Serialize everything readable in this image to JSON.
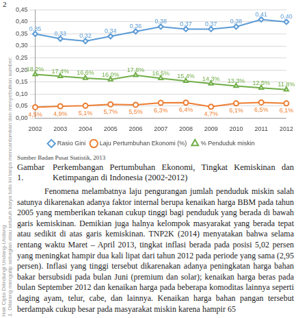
{
  "page_number": "2",
  "watermark": [
    "Hak Cipta Dilindungi Undang-Undang",
    "1. Dilarang mengutip sebagian atau seluruh karya tulis ini tanpa mencantumkan dan menyebutkan sumber:"
  ],
  "chart_data": {
    "type": "line",
    "categories": [
      "2002",
      "2003",
      "2004",
      "2005",
      "2006",
      "2007",
      "2008",
      "2009",
      "2010",
      "2011",
      "2012"
    ],
    "series": [
      {
        "name": "Rasio Gini",
        "color": "#5b9bd5",
        "marker": "diamond",
        "values": [
          0.35,
          0.33,
          0.32,
          0.34,
          0.36,
          0.38,
          0.37,
          0.37,
          0.38,
          0.41,
          0.4
        ],
        "value_labels": [
          "0,35",
          "0,33",
          "0,32",
          "0,34",
          "0,36",
          "0,38",
          "0,37",
          "0,37",
          "0,38",
          "0,41",
          "0,40"
        ]
      },
      {
        "name": "Laju Pertumbuhan Ekonomi (%)",
        "color": "#ed7d31",
        "marker": "circle",
        "values": [
          0.045,
          0.049,
          0.051,
          0.057,
          0.055,
          0.063,
          0.064,
          0.047,
          0.061,
          0.065,
          0.061
        ],
        "value_labels": [
          "4,5%",
          "4,9%",
          "5,1%",
          "5,7%",
          "5,5%",
          "6,3%",
          "6,4%",
          "4,7%",
          "6,1%",
          "6,5%",
          "6,1%"
        ]
      },
      {
        "name": "% Penduduk miskin",
        "color": "#70ad47",
        "marker": "triangle",
        "values": [
          0.182,
          0.174,
          0.166,
          0.16,
          0.178,
          0.165,
          0.154,
          0.143,
          0.133,
          0.125,
          0.118
        ],
        "value_labels": [
          "18,2%",
          "17,4%",
          "16,6%",
          "16,0%",
          "17,8%",
          "16,5%",
          "15,4%",
          "14,3%",
          "13,3%",
          "12,5%",
          "11,8%"
        ]
      }
    ],
    "ylim": [
      0,
      0.45
    ],
    "yticks": [
      {
        "value": 0,
        "label": "0,00"
      },
      {
        "value": 0.05,
        "label": "0,05"
      },
      {
        "value": 0.1,
        "label": "0,10"
      },
      {
        "value": 0.15,
        "label": "0,15"
      },
      {
        "value": 0.2,
        "label": "0,20"
      },
      {
        "value": 0.25,
        "label": "0,25"
      },
      {
        "value": 0.3,
        "label": "0,30"
      },
      {
        "value": 0.35,
        "label": "0,35"
      },
      {
        "value": 0.4,
        "label": "0,40"
      },
      {
        "value": 0.45,
        "label": "0,45"
      }
    ],
    "grid": true,
    "legend": "bottom",
    "data_labels": true
  },
  "figure": {
    "source": "Sumber Badan Pusat Statistik, 2013",
    "caption": {
      "label": "Gambar 1.",
      "text": "Perkembangan Pertumbuhan Ekonomi, Tingkat Kemiskinan dan Ketimpangan di Indonesia (2002-2012)"
    }
  },
  "body": {
    "paragraphs": [
      "Fenomena melambatnya laju pengurangan jumlah penduduk miskin salah satunya dikarenakan adanya faktor internal berupa kenaikan harga BBM pada tahun 2005 yang memberikan tekanan cukup tinggi bagi penduduk yang berada di bawah garis kemiskinan. Demikian juga halnya kelompok masyarakat yang berada tepat atau sedikit di atas garis kemiskinan. TNP2K (2014) menyatakan bahwa selama rentang waktu Maret – April 2013, tingkat inflasi berada pada posisi 5,02 persen yang meningkat hampir dua kali lipat dari tahun 2012 pada periode yang sama (2,95 persen). Inflasi yang tinggi tersebut dikarenakan adanya peningkatan harga bahan bakar bersubsidi pada bulan Juni (premium dan solar); kenaikan harga beras pada bulan September 2012 dan kenaikan harga pada beberapa komoditas lainnya seperti daging ayam, telur, cabe, dan lainnya. Kenaikan harga bahan pangan tersebut berdampak cukup besar pada masyarakat miskin karena hampir 65"
    ]
  }
}
